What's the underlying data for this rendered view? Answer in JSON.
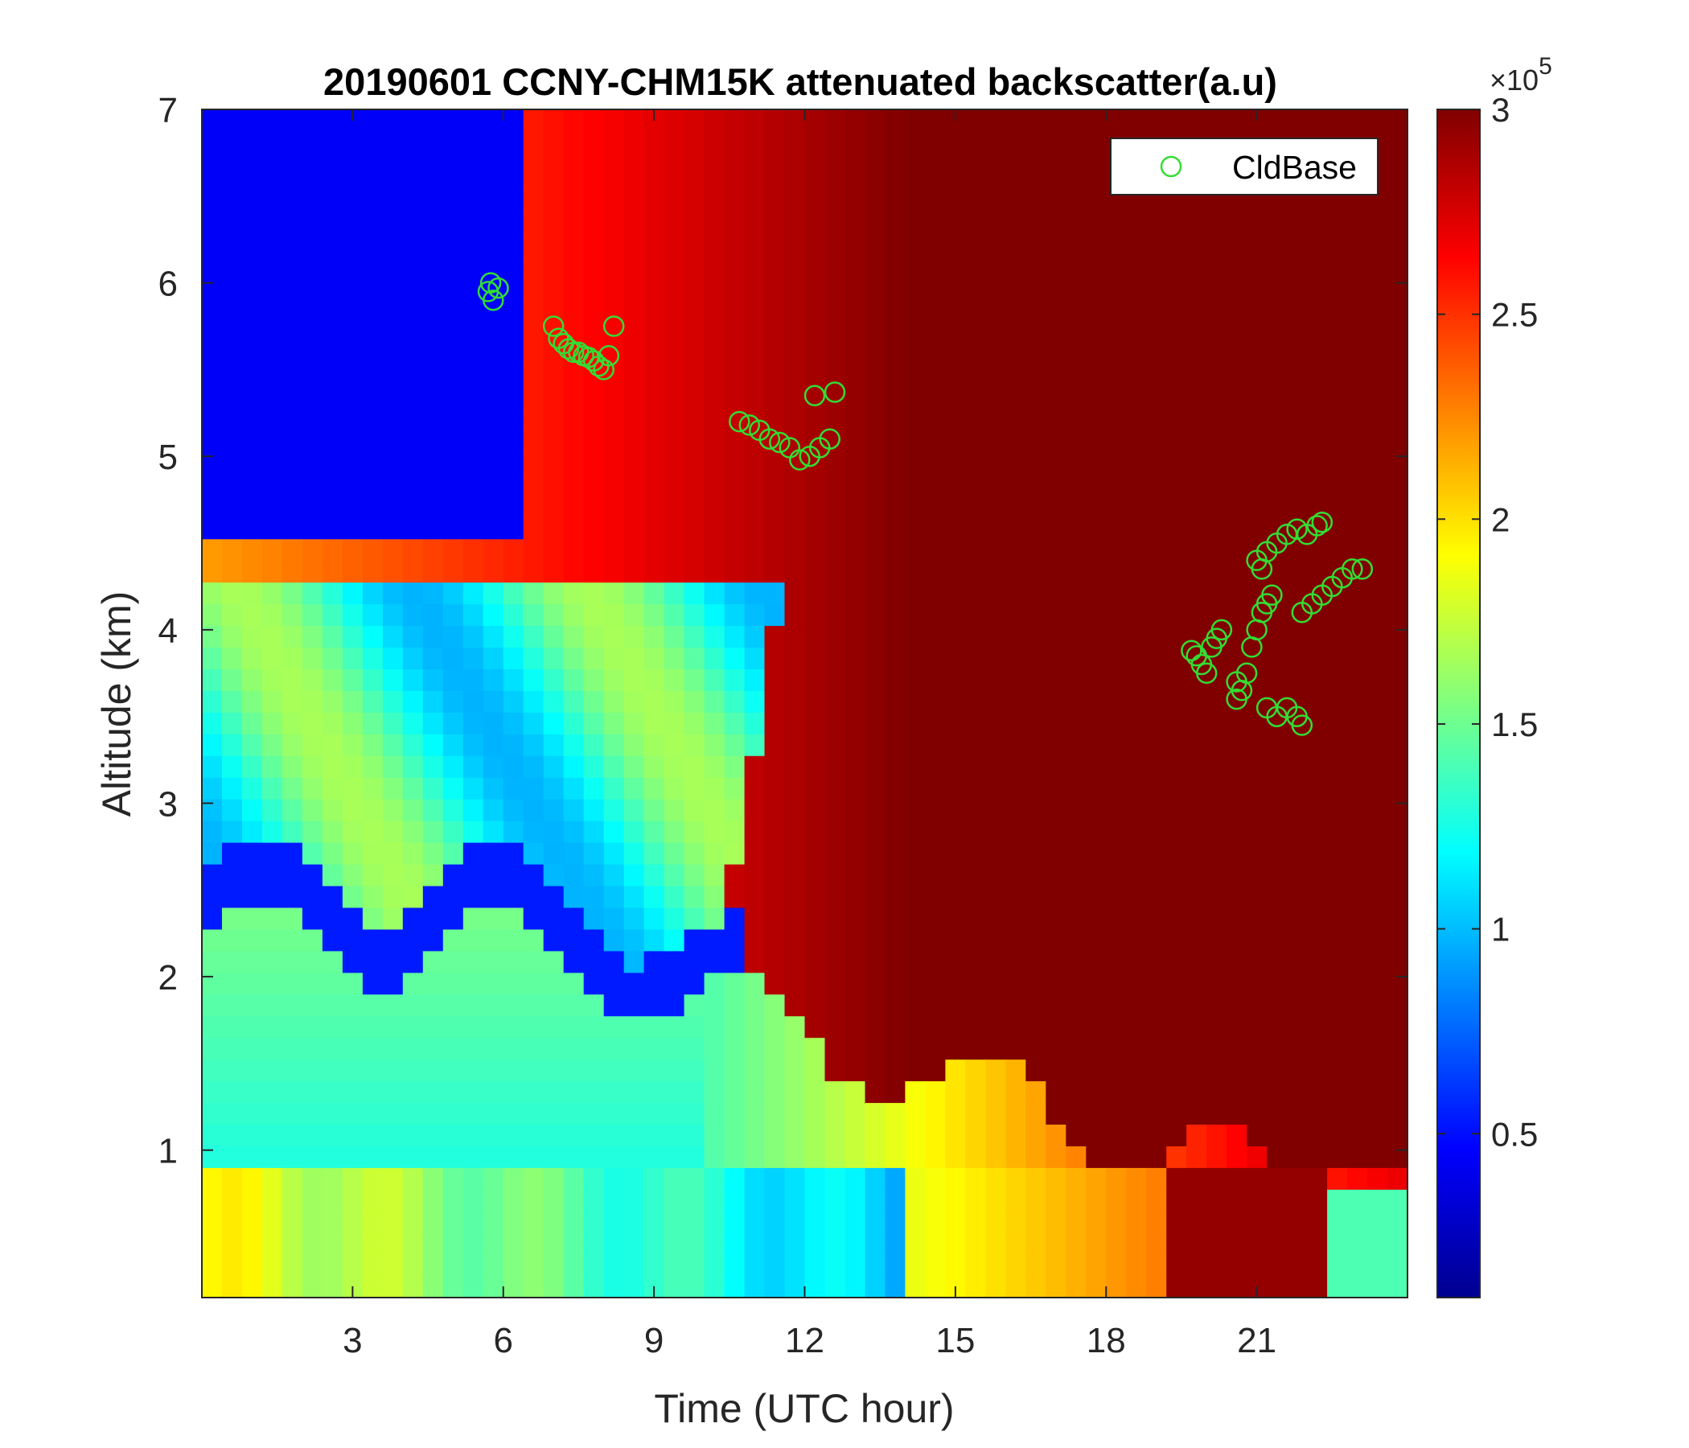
{
  "chart_data": {
    "type": "heatmap",
    "title": "20190601 CCNY-CHM15K attenuated backscatter(a.u)",
    "xlabel": "Time (UTC hour)",
    "ylabel": "Altitude (km)",
    "xlim": [
      0,
      24
    ],
    "ylim": [
      0.15,
      7
    ],
    "x_ticks": [
      3,
      6,
      9,
      12,
      15,
      18,
      21
    ],
    "x_tick_labels": [
      "3",
      "6",
      "9",
      "12",
      "15",
      "18",
      "21"
    ],
    "y_ticks": [
      1,
      2,
      3,
      4,
      5,
      6,
      7
    ],
    "y_tick_labels": [
      "1",
      "2",
      "3",
      "4",
      "5",
      "6",
      "7"
    ],
    "colorbar": {
      "colormap": "jet",
      "range": [
        10000,
        300000
      ],
      "ticks": [
        0.5,
        1,
        1.5,
        2,
        2.5,
        3
      ],
      "tick_labels": [
        "0.5",
        "1",
        "1.5",
        "2",
        "2.5",
        "3"
      ],
      "exponent_base": "×10",
      "exponent_power": "5"
    },
    "legend": {
      "position": "top-right",
      "entries": [
        "CldBase"
      ]
    },
    "series": [
      {
        "name": "CldBase",
        "marker": "open-circle",
        "color": "#33dd33",
        "points": [
          [
            5.7,
            5.95
          ],
          [
            5.8,
            5.9
          ],
          [
            5.9,
            5.97
          ],
          [
            5.75,
            6.0
          ],
          [
            7.0,
            5.75
          ],
          [
            7.1,
            5.68
          ],
          [
            7.2,
            5.65
          ],
          [
            7.3,
            5.62
          ],
          [
            7.4,
            5.6
          ],
          [
            7.5,
            5.6
          ],
          [
            7.6,
            5.58
          ],
          [
            7.7,
            5.57
          ],
          [
            7.8,
            5.55
          ],
          [
            7.9,
            5.52
          ],
          [
            8.0,
            5.5
          ],
          [
            8.1,
            5.58
          ],
          [
            8.2,
            5.75
          ],
          [
            10.7,
            5.2
          ],
          [
            10.9,
            5.18
          ],
          [
            11.1,
            5.15
          ],
          [
            11.3,
            5.1
          ],
          [
            11.5,
            5.08
          ],
          [
            11.7,
            5.05
          ],
          [
            11.9,
            4.98
          ],
          [
            12.1,
            5.0
          ],
          [
            12.3,
            5.05
          ],
          [
            12.5,
            5.1
          ],
          [
            12.2,
            5.35
          ],
          [
            12.6,
            5.37
          ],
          [
            19.8,
            3.85
          ],
          [
            19.9,
            3.8
          ],
          [
            20.0,
            3.75
          ],
          [
            20.1,
            3.9
          ],
          [
            20.2,
            3.95
          ],
          [
            20.3,
            4.0
          ],
          [
            19.7,
            3.88
          ],
          [
            20.6,
            3.7
          ],
          [
            20.7,
            3.65
          ],
          [
            20.6,
            3.6
          ],
          [
            20.8,
            3.75
          ],
          [
            20.9,
            3.9
          ],
          [
            21.0,
            4.0
          ],
          [
            21.1,
            4.1
          ],
          [
            21.2,
            4.15
          ],
          [
            21.3,
            4.2
          ],
          [
            21.0,
            4.4
          ],
          [
            21.1,
            4.35
          ],
          [
            21.2,
            4.45
          ],
          [
            21.4,
            4.5
          ],
          [
            21.6,
            4.55
          ],
          [
            21.8,
            4.58
          ],
          [
            22.0,
            4.55
          ],
          [
            22.2,
            4.6
          ],
          [
            22.3,
            4.62
          ],
          [
            21.2,
            3.55
          ],
          [
            21.4,
            3.5
          ],
          [
            21.6,
            3.55
          ],
          [
            21.8,
            3.5
          ],
          [
            21.9,
            3.45
          ],
          [
            21.9,
            4.1
          ],
          [
            22.1,
            4.15
          ],
          [
            22.3,
            4.2
          ],
          [
            22.5,
            4.25
          ],
          [
            22.7,
            4.3
          ],
          [
            22.9,
            4.35
          ],
          [
            23.1,
            4.35
          ]
        ]
      }
    ]
  }
}
